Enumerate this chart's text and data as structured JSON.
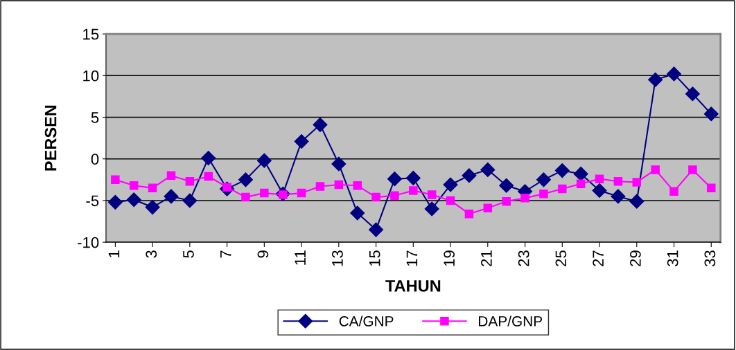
{
  "chart_data": {
    "type": "line",
    "xlabel": "TAHUN",
    "ylabel": "PERSEN",
    "categories": [
      "1",
      null,
      "3",
      null,
      "5",
      null,
      "7",
      null,
      "9",
      null,
      "11",
      null,
      "13",
      null,
      "15",
      null,
      "17",
      null,
      "19",
      null,
      "21",
      null,
      "23",
      null,
      "25",
      null,
      "27",
      null,
      "29",
      null,
      "31",
      null,
      "33"
    ],
    "series": [
      {
        "name": "CA/GNP",
        "color": "#000080",
        "marker": "diamond",
        "values": [
          -5.2,
          -4.9,
          -5.8,
          -4.5,
          -5.0,
          0.1,
          -3.6,
          -2.5,
          -0.2,
          -4.2,
          2.1,
          4.1,
          -0.6,
          -6.5,
          -8.5,
          -2.4,
          -2.3,
          -6.0,
          -3.1,
          -2.0,
          -1.3,
          -3.2,
          -3.9,
          -2.5,
          -1.4,
          -1.8,
          -3.8,
          -4.5,
          -5.1,
          9.5,
          10.2,
          7.8,
          5.4
        ]
      },
      {
        "name": "DAP/GNP",
        "color": "#ff00ff",
        "marker": "square",
        "values": [
          -2.5,
          -3.2,
          -3.5,
          -2.0,
          -2.7,
          -2.1,
          -3.4,
          -4.6,
          -4.1,
          -4.3,
          -4.1,
          -3.3,
          -3.1,
          -3.2,
          -4.6,
          -4.4,
          -3.8,
          -4.3,
          -5.0,
          -6.6,
          -5.9,
          -5.1,
          -4.7,
          -4.2,
          -3.6,
          -3.0,
          -2.4,
          -2.7,
          -2.8,
          -1.3,
          -3.9,
          -1.3,
          -3.5
        ]
      }
    ],
    "ylim": [
      -10,
      15
    ],
    "yticks": [
      -10,
      -5,
      0,
      5,
      10,
      15
    ],
    "grid": "y",
    "legend": "bottom",
    "line_style": "solid"
  }
}
